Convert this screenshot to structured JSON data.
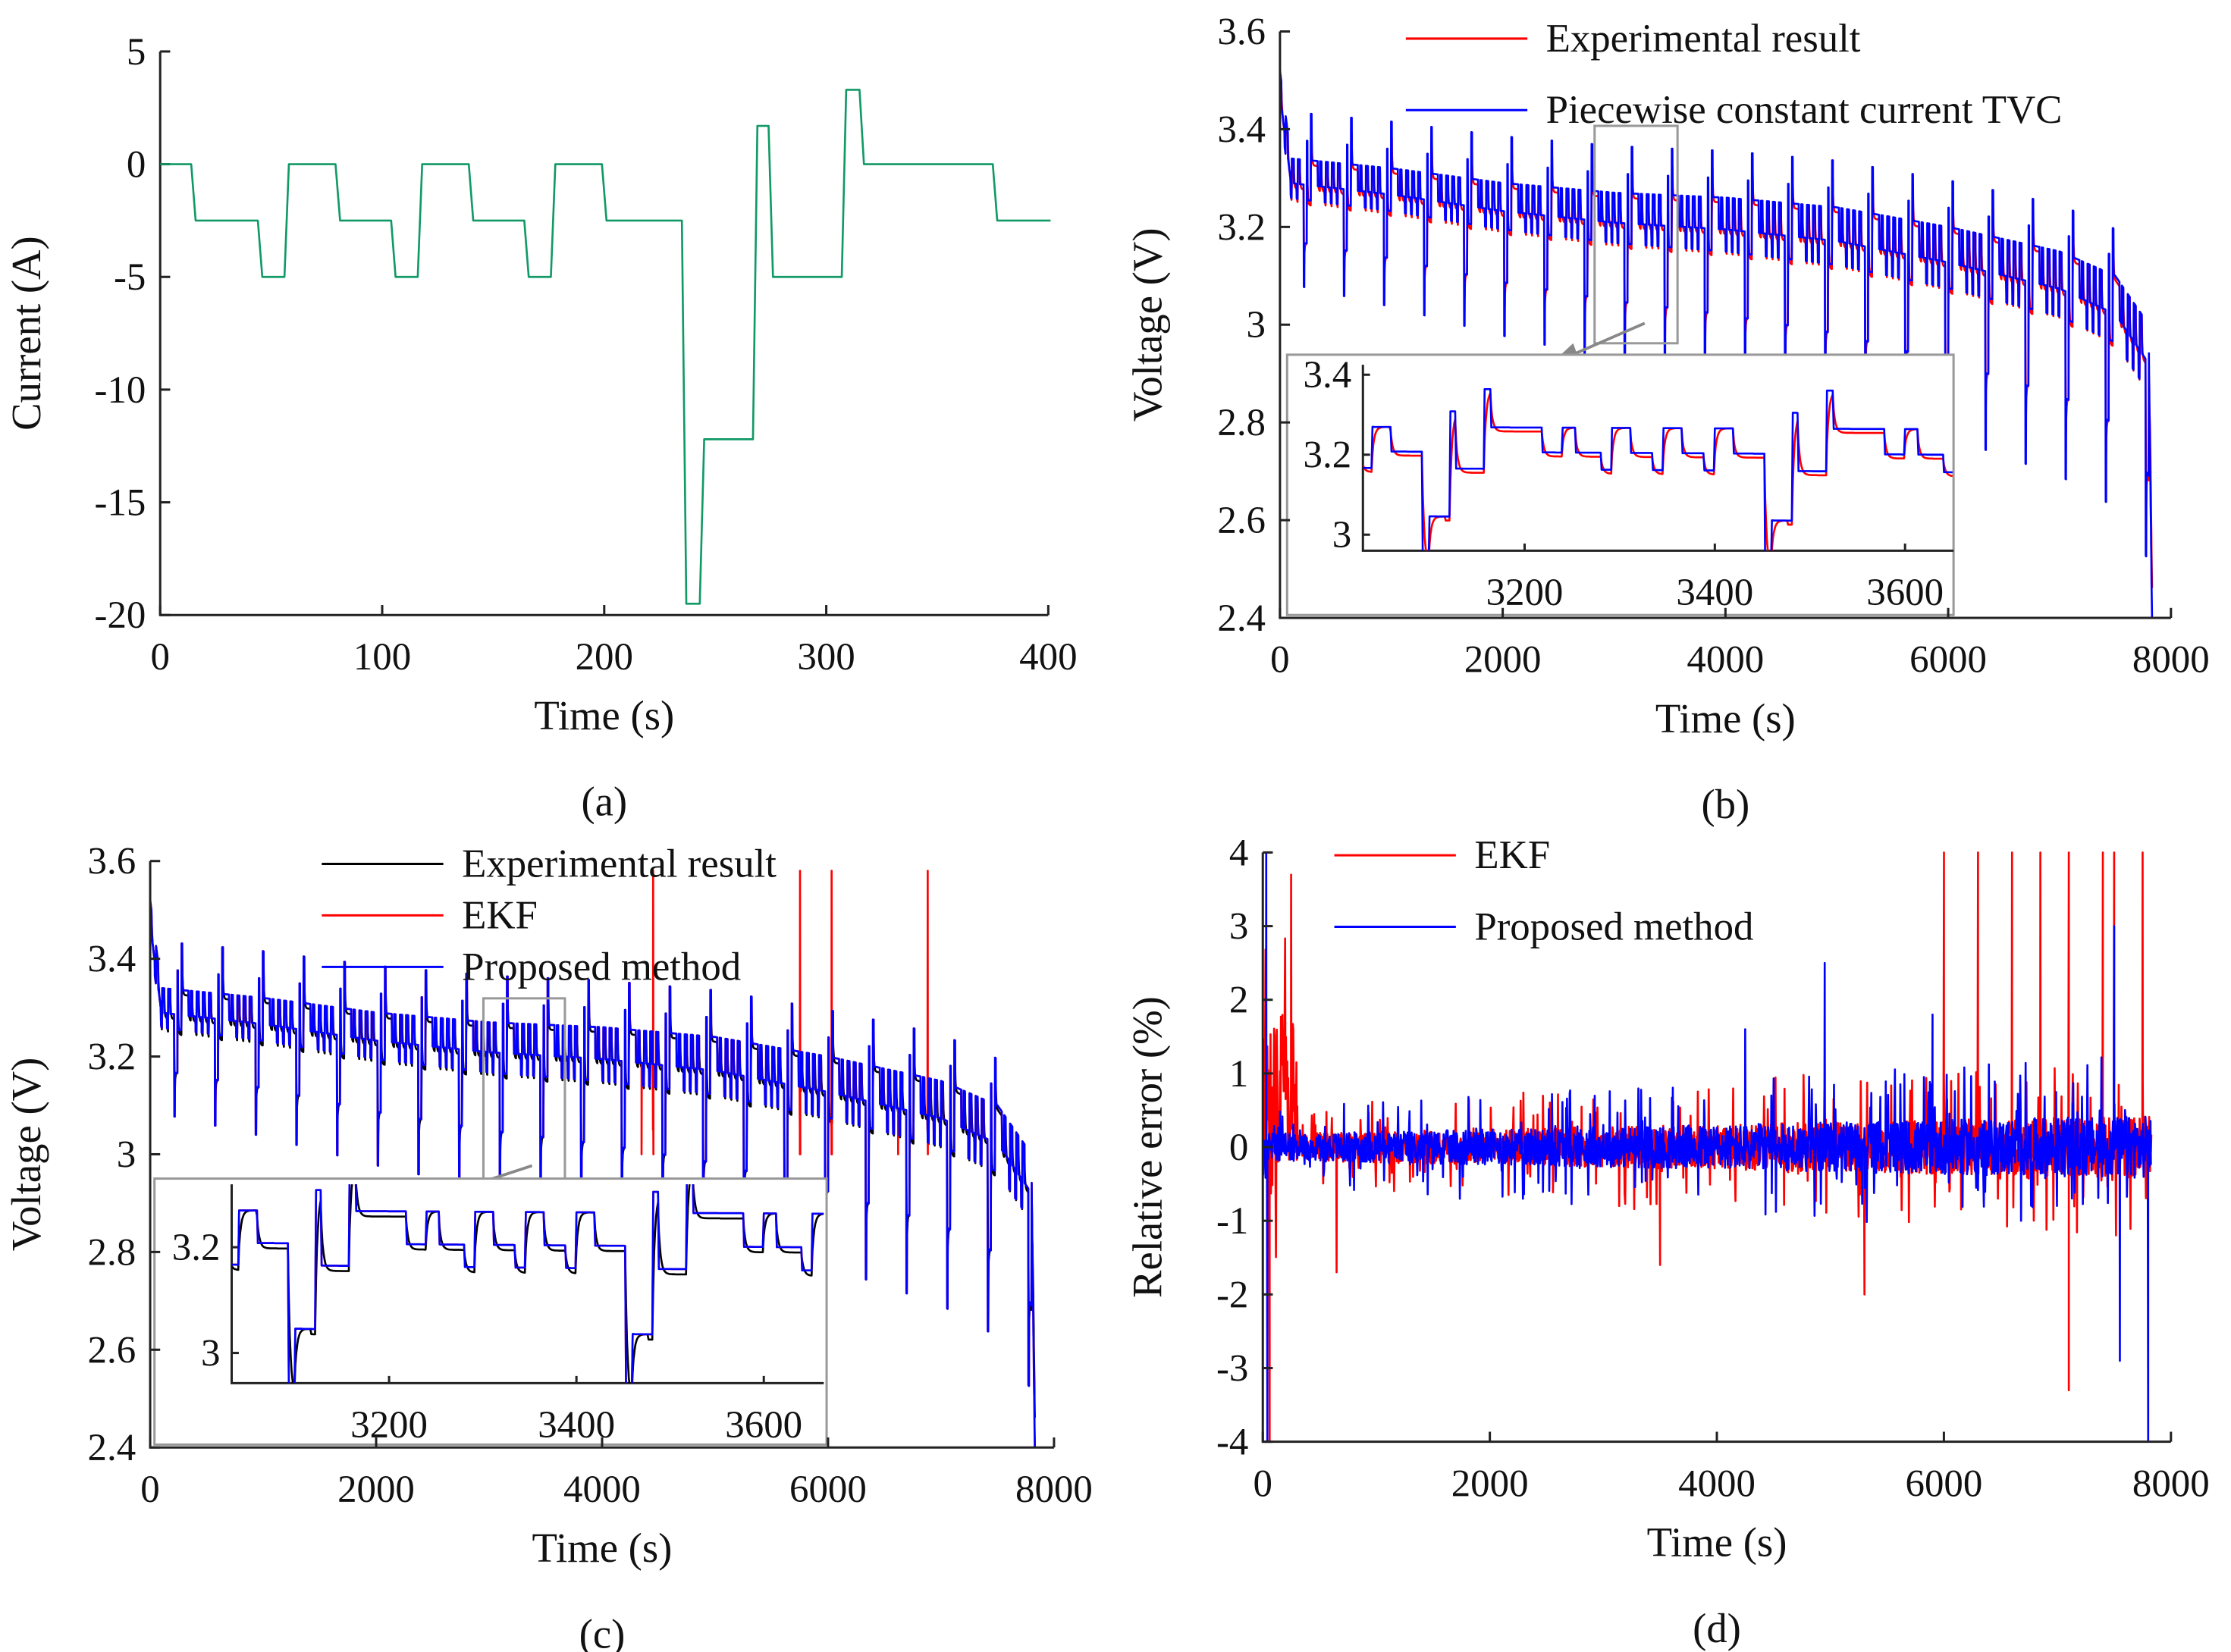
{
  "chart_data": [
    {
      "id": "a",
      "type": "line",
      "caption": "(a)",
      "xlabel": "Time (s)",
      "ylabel": "Current (A)",
      "xlim": [
        0,
        400
      ],
      "ylim": [
        -20,
        5
      ],
      "xticks": [
        "0",
        "100",
        "200",
        "300",
        "400"
      ],
      "yticks": [
        "5",
        "0",
        "-5",
        "-10",
        "-15",
        "-20"
      ],
      "series": [
        {
          "name": "Current",
          "color": "#119966",
          "steps": [
            [
              0,
              0
            ],
            [
              15,
              -2.5
            ],
            [
              45,
              -5
            ],
            [
              57,
              0
            ],
            [
              80,
              -2.5
            ],
            [
              105,
              -5
            ],
            [
              117,
              0
            ],
            [
              140,
              -2.5
            ],
            [
              165,
              -5
            ],
            [
              177,
              0
            ],
            [
              200,
              -2.5
            ],
            [
              236,
              -19.5
            ],
            [
              244,
              -12.2
            ],
            [
              268,
              1.7
            ],
            [
              275,
              -5
            ],
            [
              308,
              3.3
            ],
            [
              316,
              0
            ],
            [
              376,
              -2.5
            ],
            [
              400,
              -2.5
            ]
          ]
        }
      ]
    },
    {
      "id": "b",
      "type": "line",
      "caption": "(b)",
      "xlabel": "Time (s)",
      "ylabel": "Voltage (V)",
      "xlim": [
        0,
        8000
      ],
      "ylim": [
        2.4,
        3.6
      ],
      "xticks": [
        "0",
        "2000",
        "4000",
        "6000",
        "8000"
      ],
      "yticks": [
        "3.6",
        "3.4",
        "3.2",
        "3",
        "2.8",
        "2.6",
        "2.4"
      ],
      "legend": [
        "Experimental result",
        "Piecewise constant current TVC"
      ],
      "legend_position": "top-right",
      "series": [
        {
          "name": "Experimental result",
          "color": "#ff0000"
        },
        {
          "name": "Piecewise constant current TVC",
          "color": "#0000ff"
        }
      ],
      "baseline_voltage": [
        [
          0,
          3.5
        ],
        [
          100,
          3.32
        ],
        [
          1000,
          3.3
        ],
        [
          2000,
          3.27
        ],
        [
          3000,
          3.25
        ],
        [
          4000,
          3.24
        ],
        [
          5000,
          3.22
        ],
        [
          6000,
          3.18
        ],
        [
          7000,
          3.13
        ],
        [
          7500,
          3.08
        ],
        [
          7800,
          2.98
        ],
        [
          7830,
          2.4
        ]
      ],
      "cycle_period_s": 360,
      "inset": {
        "xlim": [
          3030,
          3650
        ],
        "ylim": [
          2.96,
          3.42
        ],
        "xticks": [
          "3200",
          "3400",
          "3600"
        ],
        "yticks": [
          "3.4",
          "3.2",
          "3"
        ]
      }
    },
    {
      "id": "c",
      "type": "line",
      "caption": "(c)",
      "xlabel": "Time (s)",
      "ylabel": "Voltage (V)",
      "xlim": [
        0,
        8000
      ],
      "ylim": [
        2.4,
        3.6
      ],
      "xticks": [
        "0",
        "2000",
        "4000",
        "6000",
        "8000"
      ],
      "yticks": [
        "3.6",
        "3.4",
        "3.2",
        "3",
        "2.8",
        "2.6",
        "2.4"
      ],
      "legend": [
        "Experimental result",
        "EKF",
        "Proposed method"
      ],
      "legend_position": "top-center",
      "series": [
        {
          "name": "Experimental result",
          "color": "#000000"
        },
        {
          "name": "EKF",
          "color": "#ff0000"
        },
        {
          "name": "Proposed method",
          "color": "#0000ff"
        }
      ],
      "inset": {
        "xlim": [
          3032,
          3664
        ],
        "ylim": [
          2.94,
          3.32
        ],
        "xticks": [
          "3200",
          "3400",
          "3600"
        ],
        "yticks": [
          "3.2",
          "3"
        ]
      }
    },
    {
      "id": "d",
      "type": "line",
      "caption": "(d)",
      "xlabel": "Time (s)",
      "ylabel": "Relative error (%)",
      "xlim": [
        0,
        8000
      ],
      "ylim": [
        -4,
        4
      ],
      "xticks": [
        "0",
        "2000",
        "4000",
        "6000",
        "8000"
      ],
      "yticks": [
        "4",
        "3",
        "2",
        "1",
        "0",
        "-1",
        "-2",
        "-3",
        "-4"
      ],
      "legend": [
        "EKF",
        "Proposed method"
      ],
      "legend_position": "top-center",
      "series": [
        {
          "name": "EKF",
          "color": "#ff0000"
        },
        {
          "name": "Proposed method",
          "color": "#0000ff"
        }
      ],
      "ekf_spikes": [
        [
          60,
          -4
        ],
        [
          250,
          3.7
        ],
        [
          650,
          -1.7
        ],
        [
          3500,
          -1.6
        ],
        [
          5300,
          -2.0
        ],
        [
          6000,
          4
        ],
        [
          6300,
          4
        ],
        [
          6600,
          4
        ],
        [
          6850,
          4
        ],
        [
          7100,
          4
        ],
        [
          7100,
          -3.3
        ],
        [
          7400,
          4
        ],
        [
          7500,
          4
        ],
        [
          7750,
          4
        ]
      ],
      "proposed_spikes": [
        [
          30,
          4
        ],
        [
          40,
          -4
        ],
        [
          4250,
          1.6
        ],
        [
          4950,
          2.5
        ],
        [
          5900,
          1.8
        ],
        [
          7500,
          3.0
        ],
        [
          7550,
          -2.9
        ],
        [
          7800,
          -4
        ]
      ]
    }
  ]
}
